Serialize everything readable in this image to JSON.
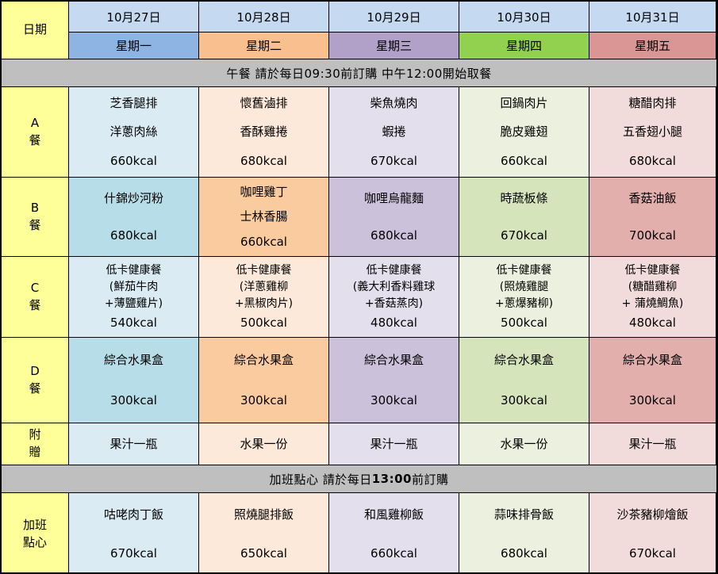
{
  "colors": {
    "label_bg": "#FFFF99",
    "date_row_bg": "#C5D9F1",
    "banner_bg": "#BFBFBF",
    "border": "#000000",
    "text": "#000000"
  },
  "header": {
    "label": "日期"
  },
  "days": [
    {
      "date": "10月27日",
      "weekday": "星期一",
      "header_color": "#8DB4E2",
      "cell_light": "#DAEBF3",
      "cell_dark": "#B7DEE8"
    },
    {
      "date": "10月28日",
      "weekday": "星期二",
      "header_color": "#FABF8F",
      "cell_light": "#FDE9D9",
      "cell_dark": "#FBCBA0"
    },
    {
      "date": "10月29日",
      "weekday": "星期三",
      "header_color": "#B1A0C7",
      "cell_light": "#E4DFEC",
      "cell_dark": "#CCC1DB"
    },
    {
      "date": "10月30日",
      "weekday": "星期四",
      "header_color": "#92D050",
      "cell_light": "#EBF1DE",
      "cell_dark": "#D6E4BC"
    },
    {
      "date": "10月31日",
      "weekday": "星期五",
      "header_color": "#D99694",
      "cell_light": "#F2DCDB",
      "cell_dark": "#E2AFAD"
    }
  ],
  "banners": {
    "lunch": {
      "text": "午餐 請於每日09:30前訂購 中午12:00開始取餐"
    },
    "snack": {
      "before": "加班點心 請於每日",
      "bold": "13:00",
      "after": "前訂購"
    }
  },
  "lunch_rows": [
    {
      "id": "a",
      "label_lines": [
        "A",
        "餐"
      ],
      "shade": "light",
      "compact": false,
      "cells": [
        {
          "dishes": [
            "芝香腿排",
            "洋蔥肉絲"
          ],
          "kcal": "660kcal"
        },
        {
          "dishes": [
            "懷舊滷排",
            "香酥雞捲"
          ],
          "kcal": "680kcal"
        },
        {
          "dishes": [
            "柴魚燒肉",
            "蝦捲"
          ],
          "kcal": "670kcal"
        },
        {
          "dishes": [
            "回鍋肉片",
            "脆皮雞翅"
          ],
          "kcal": "660kcal"
        },
        {
          "dishes": [
            "糖醋肉排",
            "五香翅小腿"
          ],
          "kcal": "680kcal"
        }
      ]
    },
    {
      "id": "b",
      "label_lines": [
        "B",
        "餐"
      ],
      "shade": "dark",
      "compact": false,
      "cells": [
        {
          "dishes": [
            "什錦炒河粉"
          ],
          "kcal": "680kcal"
        },
        {
          "dishes": [
            "咖哩雞丁",
            "士林香腸"
          ],
          "kcal": "660kcal"
        },
        {
          "dishes": [
            "咖哩烏龍麵"
          ],
          "kcal": "680kcal"
        },
        {
          "dishes": [
            "時蔬板條"
          ],
          "kcal": "670kcal"
        },
        {
          "dishes": [
            "香菇油飯"
          ],
          "kcal": "700kcal"
        }
      ]
    },
    {
      "id": "c",
      "label_lines": [
        "C",
        "餐"
      ],
      "shade": "light",
      "compact": true,
      "cells": [
        {
          "dishes": [
            "低卡健康餐",
            "(鮮茄牛肉",
            "+薄鹽雞片)"
          ],
          "kcal": "540kcal"
        },
        {
          "dishes": [
            "低卡健康餐",
            "(洋蔥雞柳",
            "+黑椒肉片)"
          ],
          "kcal": "500kcal"
        },
        {
          "dishes": [
            "低卡健康餐",
            "(義大利香料雞球",
            "+香菇蒸肉)"
          ],
          "kcal": "480kcal"
        },
        {
          "dishes": [
            "低卡健康餐",
            "(照燒雞腿",
            "+蔥爆豬柳)"
          ],
          "kcal": "500kcal"
        },
        {
          "dishes": [
            "低卡健康餐",
            "(糖醋雞柳",
            "+ 蒲燒鯛魚)"
          ],
          "kcal": "480kcal"
        }
      ]
    },
    {
      "id": "d",
      "label_lines": [
        "D",
        "餐"
      ],
      "shade": "dark",
      "compact": false,
      "cells": [
        {
          "dishes": [
            "綜合水果盒"
          ],
          "kcal": "300kcal"
        },
        {
          "dishes": [
            "綜合水果盒"
          ],
          "kcal": "300kcal"
        },
        {
          "dishes": [
            "綜合水果盒"
          ],
          "kcal": "300kcal"
        },
        {
          "dishes": [
            "綜合水果盒"
          ],
          "kcal": "300kcal"
        },
        {
          "dishes": [
            "綜合水果盒"
          ],
          "kcal": "300kcal"
        }
      ]
    },
    {
      "id": "gift",
      "label_lines": [
        "附",
        "贈"
      ],
      "shade": "light",
      "compact": false,
      "cells": [
        {
          "dishes": [
            "果汁一瓶"
          ],
          "kcal": null
        },
        {
          "dishes": [
            "水果一份"
          ],
          "kcal": null
        },
        {
          "dishes": [
            "果汁一瓶"
          ],
          "kcal": null
        },
        {
          "dishes": [
            "水果一份"
          ],
          "kcal": null
        },
        {
          "dishes": [
            "果汁一瓶"
          ],
          "kcal": null
        }
      ]
    }
  ],
  "snack_rows": [
    {
      "id": "overtime",
      "label_lines": [
        "加班",
        "點心"
      ],
      "shade": "light",
      "compact": false,
      "cells": [
        {
          "dishes": [
            "咕咾肉丁飯"
          ],
          "kcal": "670kcal"
        },
        {
          "dishes": [
            "照燒腿排飯"
          ],
          "kcal": "650kcal"
        },
        {
          "dishes": [
            "和風雞柳飯"
          ],
          "kcal": "660kcal"
        },
        {
          "dishes": [
            "蒜味排骨飯"
          ],
          "kcal": "680kcal"
        },
        {
          "dishes": [
            "沙茶豬柳燴飯"
          ],
          "kcal": "670kcal"
        }
      ]
    }
  ]
}
